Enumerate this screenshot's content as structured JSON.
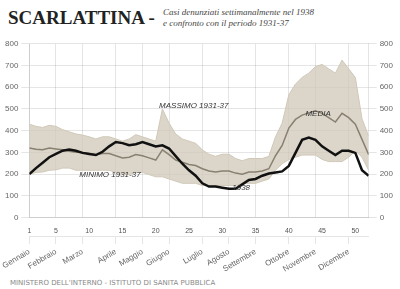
{
  "chart_data": {
    "type": "line",
    "title": "SCARLATTINA -",
    "subtitle": [
      "Casi denunziati settimanalmente nel 1938",
      "e confronto con il periodo 1931-37"
    ],
    "x": [
      1,
      2,
      3,
      4,
      5,
      6,
      7,
      8,
      9,
      10,
      11,
      12,
      13,
      14,
      15,
      16,
      17,
      18,
      19,
      20,
      21,
      22,
      23,
      24,
      25,
      26,
      27,
      28,
      29,
      30,
      31,
      32,
      33,
      34,
      35,
      36,
      37,
      38,
      39,
      40,
      41,
      42,
      43,
      44,
      45,
      46,
      47,
      48,
      49,
      50,
      51,
      52
    ],
    "xlim": [
      1,
      52
    ],
    "xticks": [
      {
        "value": 1,
        "label": "Gennaio"
      },
      {
        "value": 5,
        "label": "Febbraio"
      },
      {
        "value": 9,
        "label": "Marzo"
      },
      {
        "value": 14,
        "label": "Aprile"
      },
      {
        "value": 18,
        "label": "Maggio"
      },
      {
        "value": 22,
        "label": "Giugno"
      },
      {
        "value": 27,
        "label": "Luglio"
      },
      {
        "value": 31,
        "label": "Agosto"
      },
      {
        "value": 35,
        "label": "Settembre"
      },
      {
        "value": 40,
        "label": "Ottobre"
      },
      {
        "value": 44,
        "label": "Novembre"
      },
      {
        "value": 49,
        "label": "Dicembre"
      }
    ],
    "x2lim": [
      1,
      52
    ],
    "x2ticks": [
      1,
      5,
      10,
      15,
      20,
      25,
      30,
      35,
      40,
      45,
      50
    ],
    "ylim": [
      0,
      800
    ],
    "yticks": [
      0,
      100,
      200,
      300,
      400,
      500,
      600,
      700,
      800
    ],
    "y2lim": [
      0,
      800
    ],
    "y2ticks": [
      0,
      100,
      200,
      300,
      400,
      500,
      600,
      700,
      800
    ],
    "grid": true,
    "series": [
      {
        "type": "area",
        "color": "#d0c8b8",
        "values": [
          430,
          420,
          415,
          425,
          420,
          405,
          395,
          385,
          380,
          372,
          362,
          372,
          372,
          362,
          352,
          362,
          382,
          372,
          362,
          352,
          500,
          435,
          385,
          362,
          352,
          342,
          312,
          292,
          282,
          292,
          292,
          272,
          262,
          272,
          272,
          272,
          282,
          372,
          435,
          565,
          615,
          645,
          665,
          695,
          705,
          685,
          665,
          725,
          685,
          645,
          455,
          375
        ]
      },
      {
        "type": "area",
        "color": "#d0c8b8",
        "values": [
          200,
          208,
          210,
          218,
          220,
          228,
          228,
          218,
          218,
          218,
          218,
          218,
          218,
          208,
          198,
          198,
          208,
          208,
          198,
          188,
          188,
          178,
          168,
          158,
          158,
          158,
          148,
          148,
          148,
          148,
          148,
          148,
          158,
          158,
          158,
          168,
          178,
          218,
          248,
          268,
          278,
          288,
          288,
          288,
          268,
          258,
          258,
          258,
          278,
          308,
          278,
          218
        ]
      },
      {
        "type": "line",
        "color": "#888070",
        "values": [
          320,
          315,
          312,
          320,
          316,
          312,
          306,
          301,
          300,
          295,
          290,
          295,
          295,
          285,
          275,
          278,
          290,
          285,
          275,
          265,
          312,
          290,
          265,
          255,
          245,
          240,
          225,
          215,
          210,
          215,
          215,
          205,
          200,
          210,
          210,
          215,
          225,
          285,
          332,
          412,
          452,
          472,
          482,
          492,
          480,
          460,
          440,
          480,
          460,
          430,
          360,
          290
        ]
      },
      {
        "type": "line",
        "color": "#111111",
        "values": [
          200,
          228,
          253,
          278,
          293,
          308,
          313,
          308,
          298,
          293,
          288,
          303,
          328,
          348,
          343,
          333,
          338,
          348,
          338,
          328,
          333,
          318,
          283,
          248,
          218,
          193,
          158,
          143,
          143,
          138,
          133,
          133,
          153,
          173,
          178,
          193,
          203,
          208,
          213,
          238,
          298,
          358,
          368,
          358,
          328,
          308,
          288,
          308,
          308,
          298,
          218,
          193
        ]
      }
    ],
    "annotations": [
      {
        "text": "MASSIMO 1931-37",
        "x": 20.5,
        "y": 505
      },
      {
        "text": "MINIMO 1931-37",
        "x": 8.5,
        "y": 188
      },
      {
        "text": "MEDIA",
        "x": 42.5,
        "y": 468
      },
      {
        "text": "1938",
        "x": 31.5,
        "y": 128
      }
    ],
    "footer": "MINISTERO DELL'INTERNO - ISTITUTO DI SANITA PUBBLICA"
  }
}
